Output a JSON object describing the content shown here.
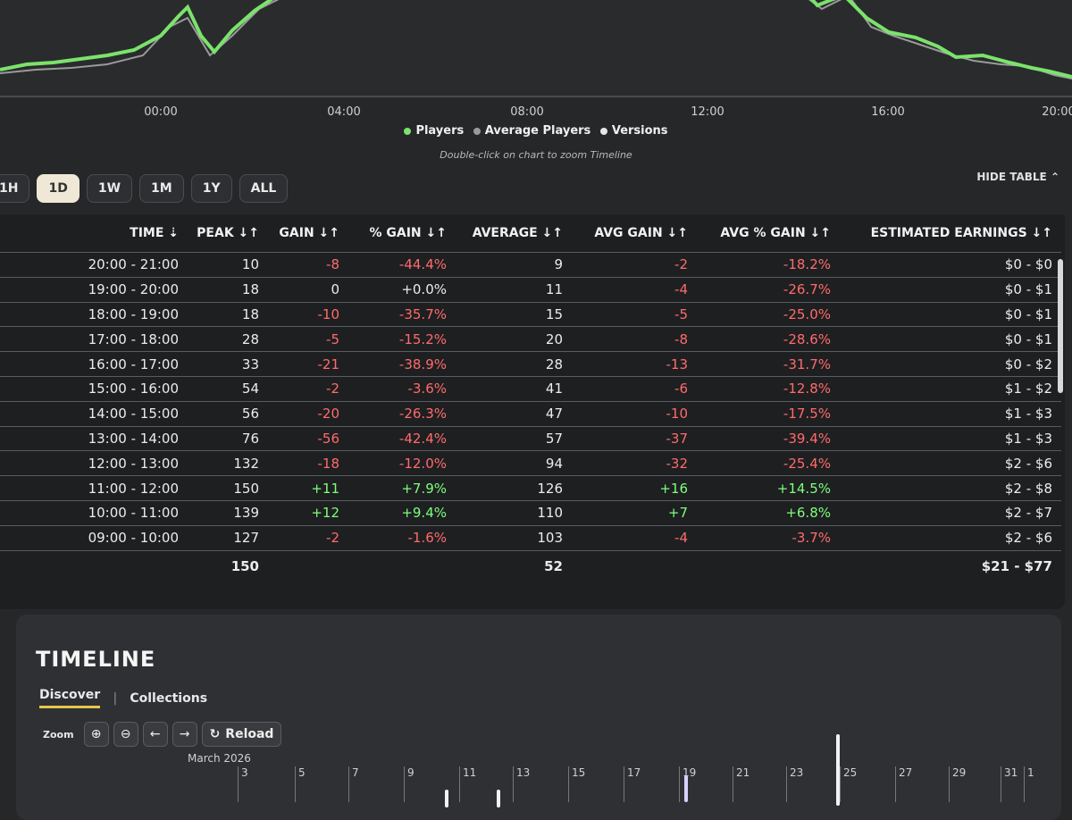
{
  "chart": {
    "x_ticks": [
      "00:00",
      "04:00",
      "08:00",
      "12:00",
      "16:00",
      "20:00"
    ],
    "legend": [
      {
        "label": "Players",
        "color": "#7be36b"
      },
      {
        "label": "Average Players",
        "color": "#9a9a9a"
      },
      {
        "label": "Versions",
        "color": "#e6e6e6"
      }
    ],
    "hint": "Double-click on chart to zoom Timeline"
  },
  "range_tabs": [
    {
      "label": "1H",
      "active": false
    },
    {
      "label": "1D",
      "active": true
    },
    {
      "label": "1W",
      "active": false
    },
    {
      "label": "1M",
      "active": false
    },
    {
      "label": "1Y",
      "active": false
    },
    {
      "label": "ALL",
      "active": false
    }
  ],
  "hide_table_label": "HIDE TABLE",
  "table": {
    "headers": {
      "time": "TIME ⇣",
      "peak": "PEAK ↓↑",
      "gain": "GAIN ↓↑",
      "pct_gain": "% GAIN ↓↑",
      "average": "AVERAGE ↓↑",
      "avg_gain": "AVG GAIN ↓↑",
      "avg_pct_gain": "AVG % GAIN ↓↑",
      "earnings": "ESTIMATED EARNINGS ↓↑"
    },
    "rows": [
      {
        "time": "20:00 - 21:00",
        "peak": "10",
        "gain": "-8",
        "pct_gain": "-44.4%",
        "average": "9",
        "avg_gain": "-2",
        "avg_pct_gain": "-18.2%",
        "earnings": "$0 - $0"
      },
      {
        "time": "19:00 - 20:00",
        "peak": "18",
        "gain": "0",
        "pct_gain": "+0.0%",
        "average": "11",
        "avg_gain": "-4",
        "avg_pct_gain": "-26.7%",
        "earnings": "$0 - $1"
      },
      {
        "time": "18:00 - 19:00",
        "peak": "18",
        "gain": "-10",
        "pct_gain": "-35.7%",
        "average": "15",
        "avg_gain": "-5",
        "avg_pct_gain": "-25.0%",
        "earnings": "$0 - $1"
      },
      {
        "time": "17:00 - 18:00",
        "peak": "28",
        "gain": "-5",
        "pct_gain": "-15.2%",
        "average": "20",
        "avg_gain": "-8",
        "avg_pct_gain": "-28.6%",
        "earnings": "$0 - $1"
      },
      {
        "time": "16:00 - 17:00",
        "peak": "33",
        "gain": "-21",
        "pct_gain": "-38.9%",
        "average": "28",
        "avg_gain": "-13",
        "avg_pct_gain": "-31.7%",
        "earnings": "$0 - $2"
      },
      {
        "time": "15:00 - 16:00",
        "peak": "54",
        "gain": "-2",
        "pct_gain": "-3.6%",
        "average": "41",
        "avg_gain": "-6",
        "avg_pct_gain": "-12.8%",
        "earnings": "$1 - $2"
      },
      {
        "time": "14:00 - 15:00",
        "peak": "56",
        "gain": "-20",
        "pct_gain": "-26.3%",
        "average": "47",
        "avg_gain": "-10",
        "avg_pct_gain": "-17.5%",
        "earnings": "$1 - $3"
      },
      {
        "time": "13:00 - 14:00",
        "peak": "76",
        "gain": "-56",
        "pct_gain": "-42.4%",
        "average": "57",
        "avg_gain": "-37",
        "avg_pct_gain": "-39.4%",
        "earnings": "$1 - $3"
      },
      {
        "time": "12:00 - 13:00",
        "peak": "132",
        "gain": "-18",
        "pct_gain": "-12.0%",
        "average": "94",
        "avg_gain": "-32",
        "avg_pct_gain": "-25.4%",
        "earnings": "$2 - $6"
      },
      {
        "time": "11:00 - 12:00",
        "peak": "150",
        "gain": "+11",
        "pct_gain": "+7.9%",
        "average": "126",
        "avg_gain": "+16",
        "avg_pct_gain": "+14.5%",
        "earnings": "$2 - $8"
      },
      {
        "time": "10:00 - 11:00",
        "peak": "139",
        "gain": "+12",
        "pct_gain": "+9.4%",
        "average": "110",
        "avg_gain": "+7",
        "avg_pct_gain": "+6.8%",
        "earnings": "$2 - $7"
      },
      {
        "time": "09:00 - 10:00",
        "peak": "127",
        "gain": "-2",
        "pct_gain": "-1.6%",
        "average": "103",
        "avg_gain": "-4",
        "avg_pct_gain": "-3.7%",
        "earnings": "$2 - $6"
      }
    ],
    "totals": {
      "peak": "150",
      "average": "52",
      "earnings": "$21 - $77"
    }
  },
  "timeline": {
    "title": "TIMELINE",
    "tabs": [
      "Discover",
      "Collections"
    ],
    "zoom_label": "Zoom",
    "reload_label": "Reload",
    "month_label": "March 2026",
    "days": [
      "3",
      "5",
      "7",
      "9",
      "11",
      "13",
      "15",
      "17",
      "19",
      "21",
      "23",
      "25",
      "27",
      "29",
      "31",
      "1"
    ]
  }
}
